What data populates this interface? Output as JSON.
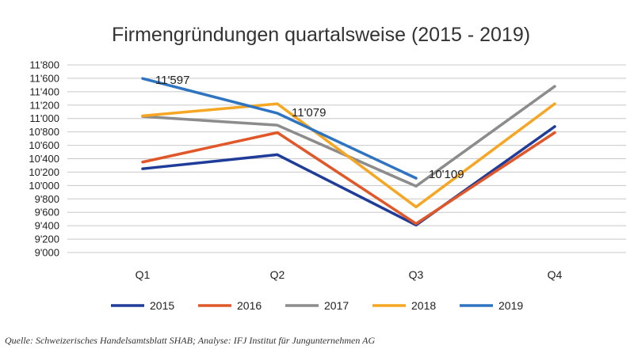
{
  "chart_data": {
    "type": "line",
    "title": "Firmengründungen quartalsweise (2015 - 2019)",
    "categories": [
      "Q1",
      "Q2",
      "Q3",
      "Q4"
    ],
    "ylim": [
      9000,
      11800
    ],
    "yticks": [
      "9'000",
      "9'200",
      "9'400",
      "9'600",
      "9'800",
      "10'000",
      "10'200",
      "10'400",
      "10'600",
      "10'800",
      "11'000",
      "11'200",
      "11'400",
      "11'600",
      "11'800"
    ],
    "ytick_values": [
      9000,
      9200,
      9400,
      9600,
      9800,
      10000,
      10200,
      10400,
      10600,
      10800,
      11000,
      11200,
      11400,
      11600,
      11800
    ],
    "grid": true,
    "legend_position": "bottom",
    "series": [
      {
        "name": "2015",
        "color": "#1f3c99",
        "values": [
          10250,
          10460,
          9410,
          10880
        ]
      },
      {
        "name": "2016",
        "color": "#e0582a",
        "values": [
          10350,
          10790,
          9430,
          10790
        ]
      },
      {
        "name": "2017",
        "color": "#8c8c8c",
        "values": [
          11030,
          10900,
          9990,
          11480
        ]
      },
      {
        "name": "2018",
        "color": "#f5a623",
        "values": [
          11040,
          11220,
          9680,
          11220
        ]
      },
      {
        "name": "2019",
        "color": "#2e74c0",
        "values": [
          11597,
          11079,
          10109,
          null
        ]
      }
    ],
    "annotations": [
      {
        "text": "11'597",
        "series": 4,
        "index": 0
      },
      {
        "text": "11'079",
        "series": 4,
        "index": 1
      },
      {
        "text": "10'109",
        "series": 4,
        "index": 2
      }
    ]
  },
  "source": "Quelle: Schweizerisches Handelsamtsblatt SHAB; Analyse: IFJ Institut für Jungunternehmen AG"
}
